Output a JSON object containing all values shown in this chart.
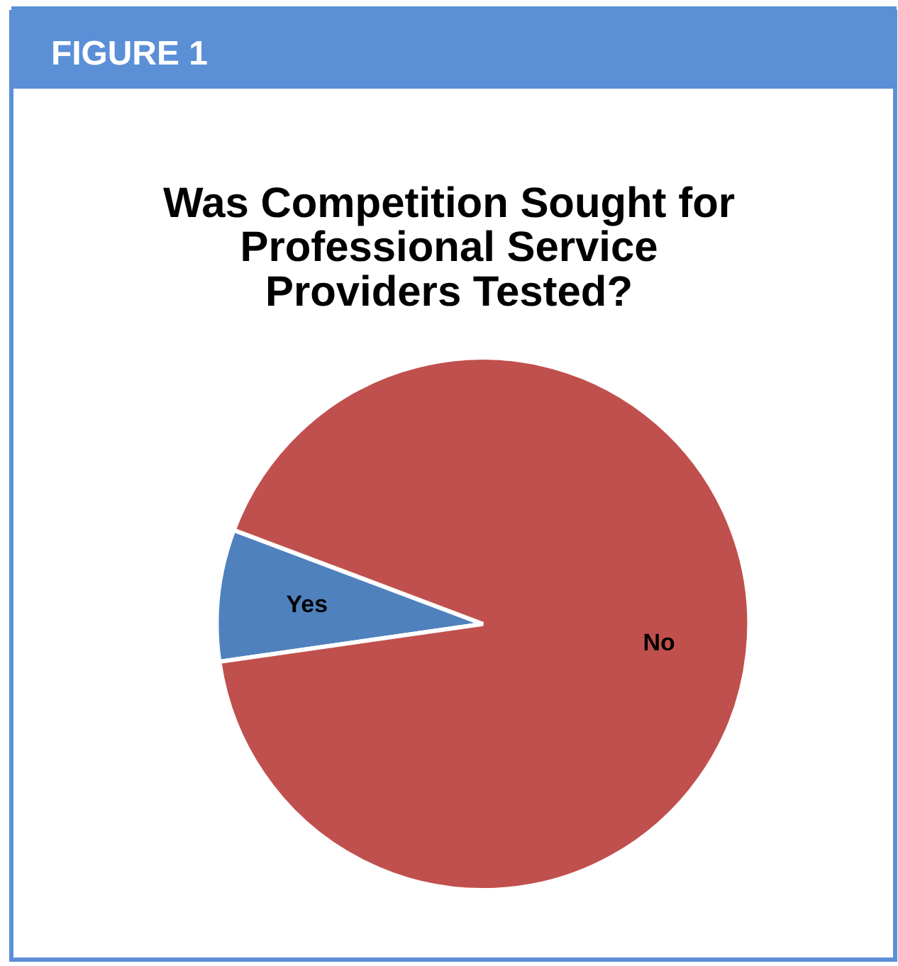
{
  "chart_data": {
    "type": "pie",
    "title": "Was Competition Sought for Professional Service Providers Tested?",
    "annotations": [
      "FIGURE 1"
    ],
    "categories": [
      "Yes",
      "No"
    ],
    "values": [
      8,
      92
    ],
    "colors": [
      "#4f81bd",
      "#c0504d"
    ],
    "legend": false
  }
}
